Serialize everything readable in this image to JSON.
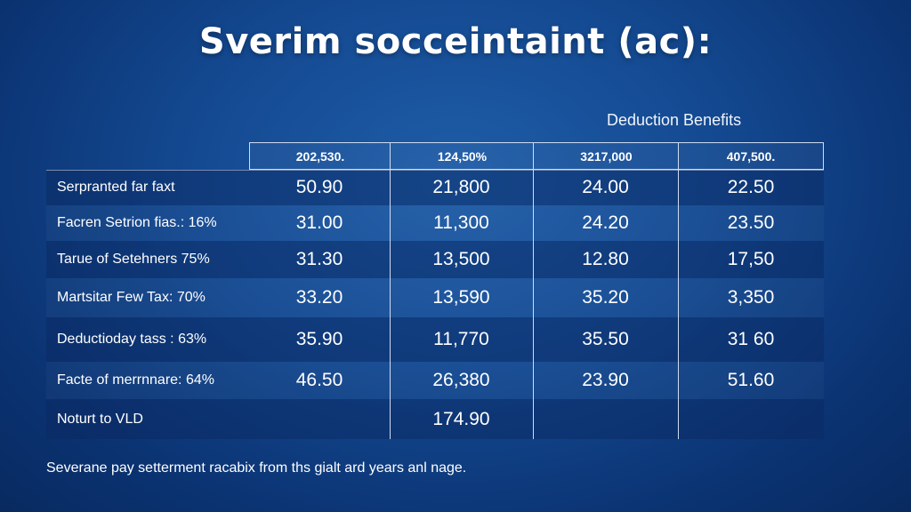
{
  "chart_data": {
    "type": "table",
    "title": "Sverim socceintaint (ac):",
    "subtitle": "Deduction Benefits",
    "columns": [
      "202,530.",
      "124,50%",
      "3217,000",
      "407,500."
    ],
    "rows": [
      {
        "label": "Serpranted far faxt",
        "values": [
          "50.90",
          "21,800",
          "24.00",
          "22.50"
        ]
      },
      {
        "label": "Facren Setrion fias.: 16%",
        "values": [
          "31.00",
          "11,300",
          "24.20",
          "23.50"
        ]
      },
      {
        "label": "Tarue of Setehners 75%",
        "values": [
          "31.30",
          "13,500",
          "12.80",
          "17,50"
        ]
      },
      {
        "label": "Martsitar Few Tax: 70%",
        "values": [
          "33.20",
          "13,590",
          "35.20",
          "3,350"
        ]
      },
      {
        "label": "Deductioday tass : 63%",
        "values": [
          "35.90",
          "11,770",
          "35.50",
          "31 60"
        ]
      },
      {
        "label": "Facte of merrnnare: 64%",
        "values": [
          "46.50",
          "26,380",
          "23.90",
          "51.60"
        ]
      },
      {
        "label": "Noturt to VLD",
        "values": [
          "",
          "174.90",
          "",
          ""
        ]
      }
    ],
    "footnote": "Severane pay setterment racabix from ths gialt ard years anl nage.",
    "grid": true
  }
}
